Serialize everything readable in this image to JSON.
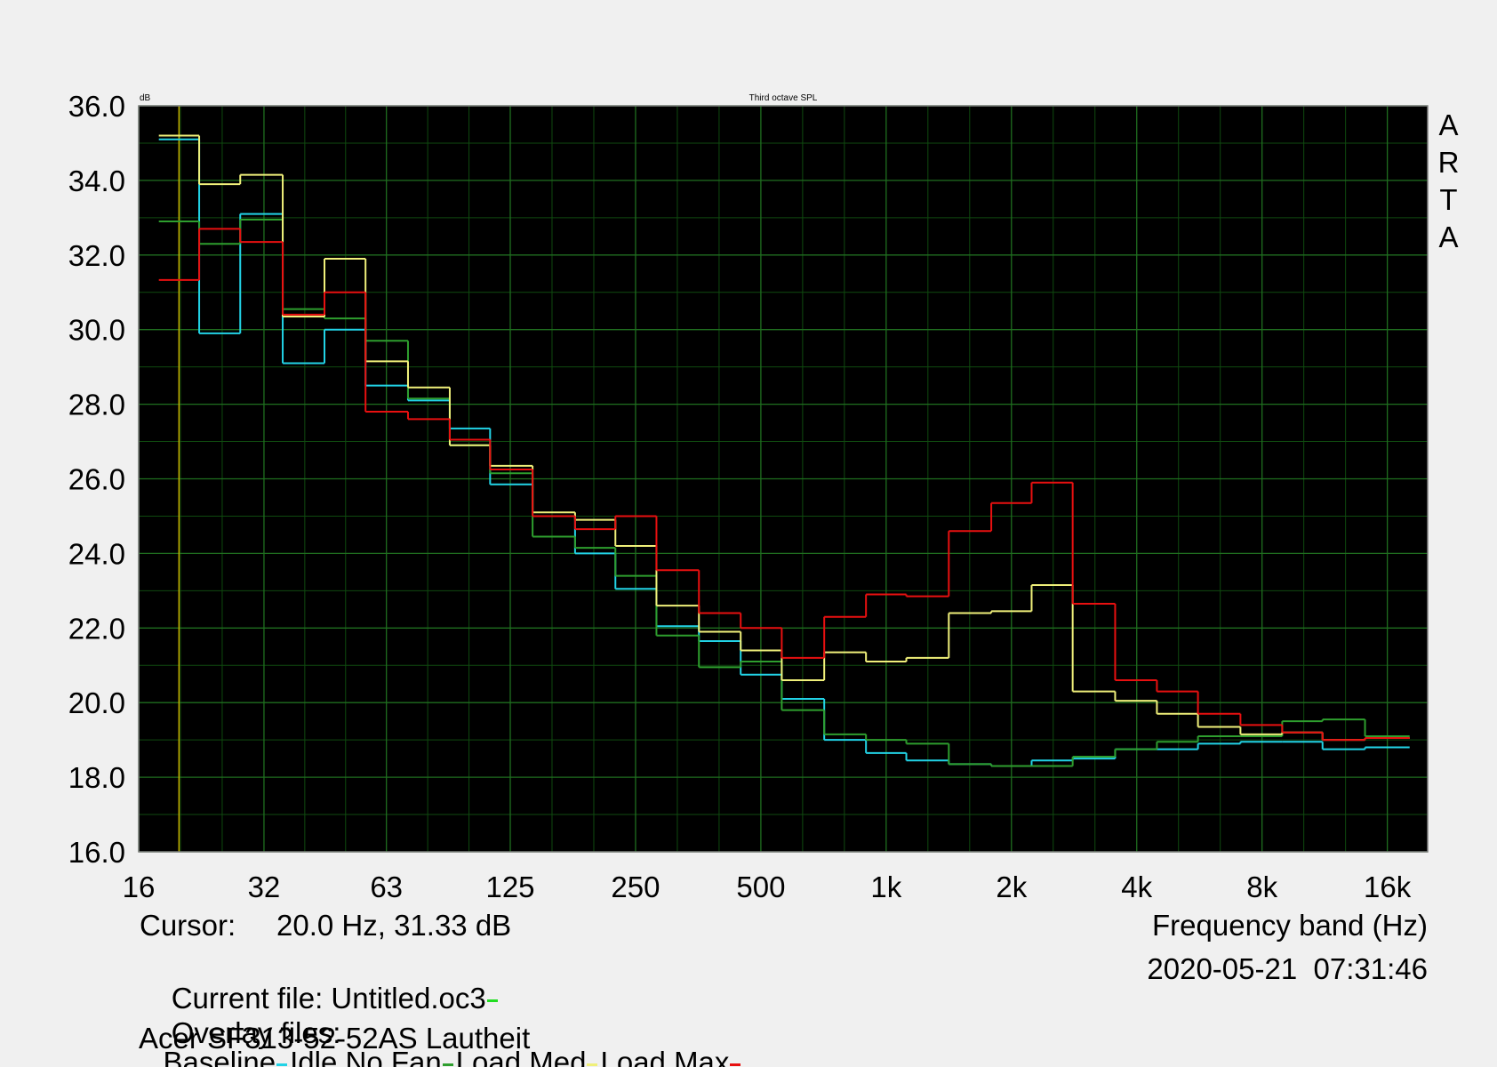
{
  "chart_data": {
    "type": "step",
    "title": "Third octave SPL",
    "y_unit": "dB",
    "xlabel": "Frequency band (Hz)",
    "brand": "ARTA",
    "x_scale": "log",
    "grid": true,
    "background": "#000000",
    "x": [
      20,
      25,
      31.5,
      40,
      50,
      63,
      80,
      100,
      125,
      160,
      200,
      250,
      315,
      400,
      500,
      630,
      800,
      1000,
      1250,
      1600,
      2000,
      2500,
      3150,
      4000,
      5000,
      6300,
      8000,
      10000,
      12500,
      16000
    ],
    "series": [
      {
        "name": "Baseline",
        "color": "#22d3e6",
        "values": [
          35.1,
          29.9,
          33.1,
          29.1,
          30.0,
          28.5,
          28.1,
          27.35,
          25.85,
          25.0,
          24.0,
          23.05,
          22.05,
          21.65,
          20.75,
          20.1,
          19.0,
          18.65,
          18.45,
          18.35,
          18.3,
          18.45,
          18.5,
          18.75,
          18.75,
          18.9,
          18.95,
          18.95,
          18.75,
          18.8
        ]
      },
      {
        "name": "Idle No Fan",
        "color": "#2e9e2e",
        "values": [
          32.9,
          32.3,
          32.95,
          30.55,
          30.3,
          29.7,
          28.15,
          26.9,
          26.15,
          24.45,
          24.15,
          23.4,
          21.8,
          20.95,
          21.1,
          19.8,
          19.15,
          19.0,
          18.9,
          18.35,
          18.3,
          18.3,
          18.55,
          18.75,
          18.95,
          19.1,
          19.1,
          19.5,
          19.55,
          19.1
        ]
      },
      {
        "name": "Load Med",
        "color": "#f0f07a",
        "values": [
          35.2,
          33.9,
          34.15,
          30.35,
          31.9,
          29.15,
          28.45,
          26.9,
          26.35,
          25.1,
          24.9,
          24.2,
          22.6,
          21.9,
          21.4,
          20.6,
          21.35,
          21.1,
          21.2,
          22.4,
          22.45,
          23.15,
          20.3,
          20.05,
          19.7,
          19.35,
          19.15,
          19.2,
          19.0,
          19.05
        ]
      },
      {
        "name": "Load Max",
        "color": "#e81010",
        "values": [
          31.33,
          32.7,
          32.35,
          30.4,
          31.0,
          27.8,
          27.6,
          27.05,
          26.25,
          25.0,
          24.65,
          25.0,
          23.55,
          22.4,
          22.0,
          21.2,
          22.3,
          22.9,
          22.85,
          24.6,
          25.35,
          25.9,
          22.65,
          20.6,
          20.3,
          19.7,
          19.4,
          19.2,
          19.0,
          19.05
        ]
      }
    ],
    "xlim": [
      16,
      20000
    ],
    "xticks": [
      16,
      32,
      63,
      125,
      250,
      500,
      {
        "value": 1000,
        "label": "1k"
      },
      {
        "value": 2000,
        "label": "2k"
      },
      {
        "value": 4000,
        "label": "4k"
      },
      {
        "value": 8000,
        "label": "8k"
      },
      {
        "value": 16000,
        "label": "16k"
      }
    ],
    "ylim": [
      16,
      36
    ],
    "yticks": [
      {
        "value": 16,
        "label": "16.0"
      },
      {
        "value": 18,
        "label": "18.0"
      },
      {
        "value": 20,
        "label": "20.0"
      },
      {
        "value": 22,
        "label": "22.0"
      },
      {
        "value": 24,
        "label": "24.0"
      },
      {
        "value": 26,
        "label": "26.0"
      },
      {
        "value": 28,
        "label": "28.0"
      },
      {
        "value": 30,
        "label": "30.0"
      },
      {
        "value": 32,
        "label": "32.0"
      },
      {
        "value": 34,
        "label": "34.0"
      },
      {
        "value": 36,
        "label": "36.0"
      }
    ],
    "cursor": {
      "label": "Cursor:",
      "readout": "20.0 Hz, 31.33 dB",
      "x": 20,
      "color": "#c8b400"
    },
    "timestamp": "2020-05-21  07:31:46",
    "current_file": {
      "label": "Current file:",
      "name": "Untitled.oc3",
      "color": "#22dd22"
    },
    "overlay_label": "Overlay files:",
    "caption": "Acer SF313-52-52AS Lautheit"
  }
}
